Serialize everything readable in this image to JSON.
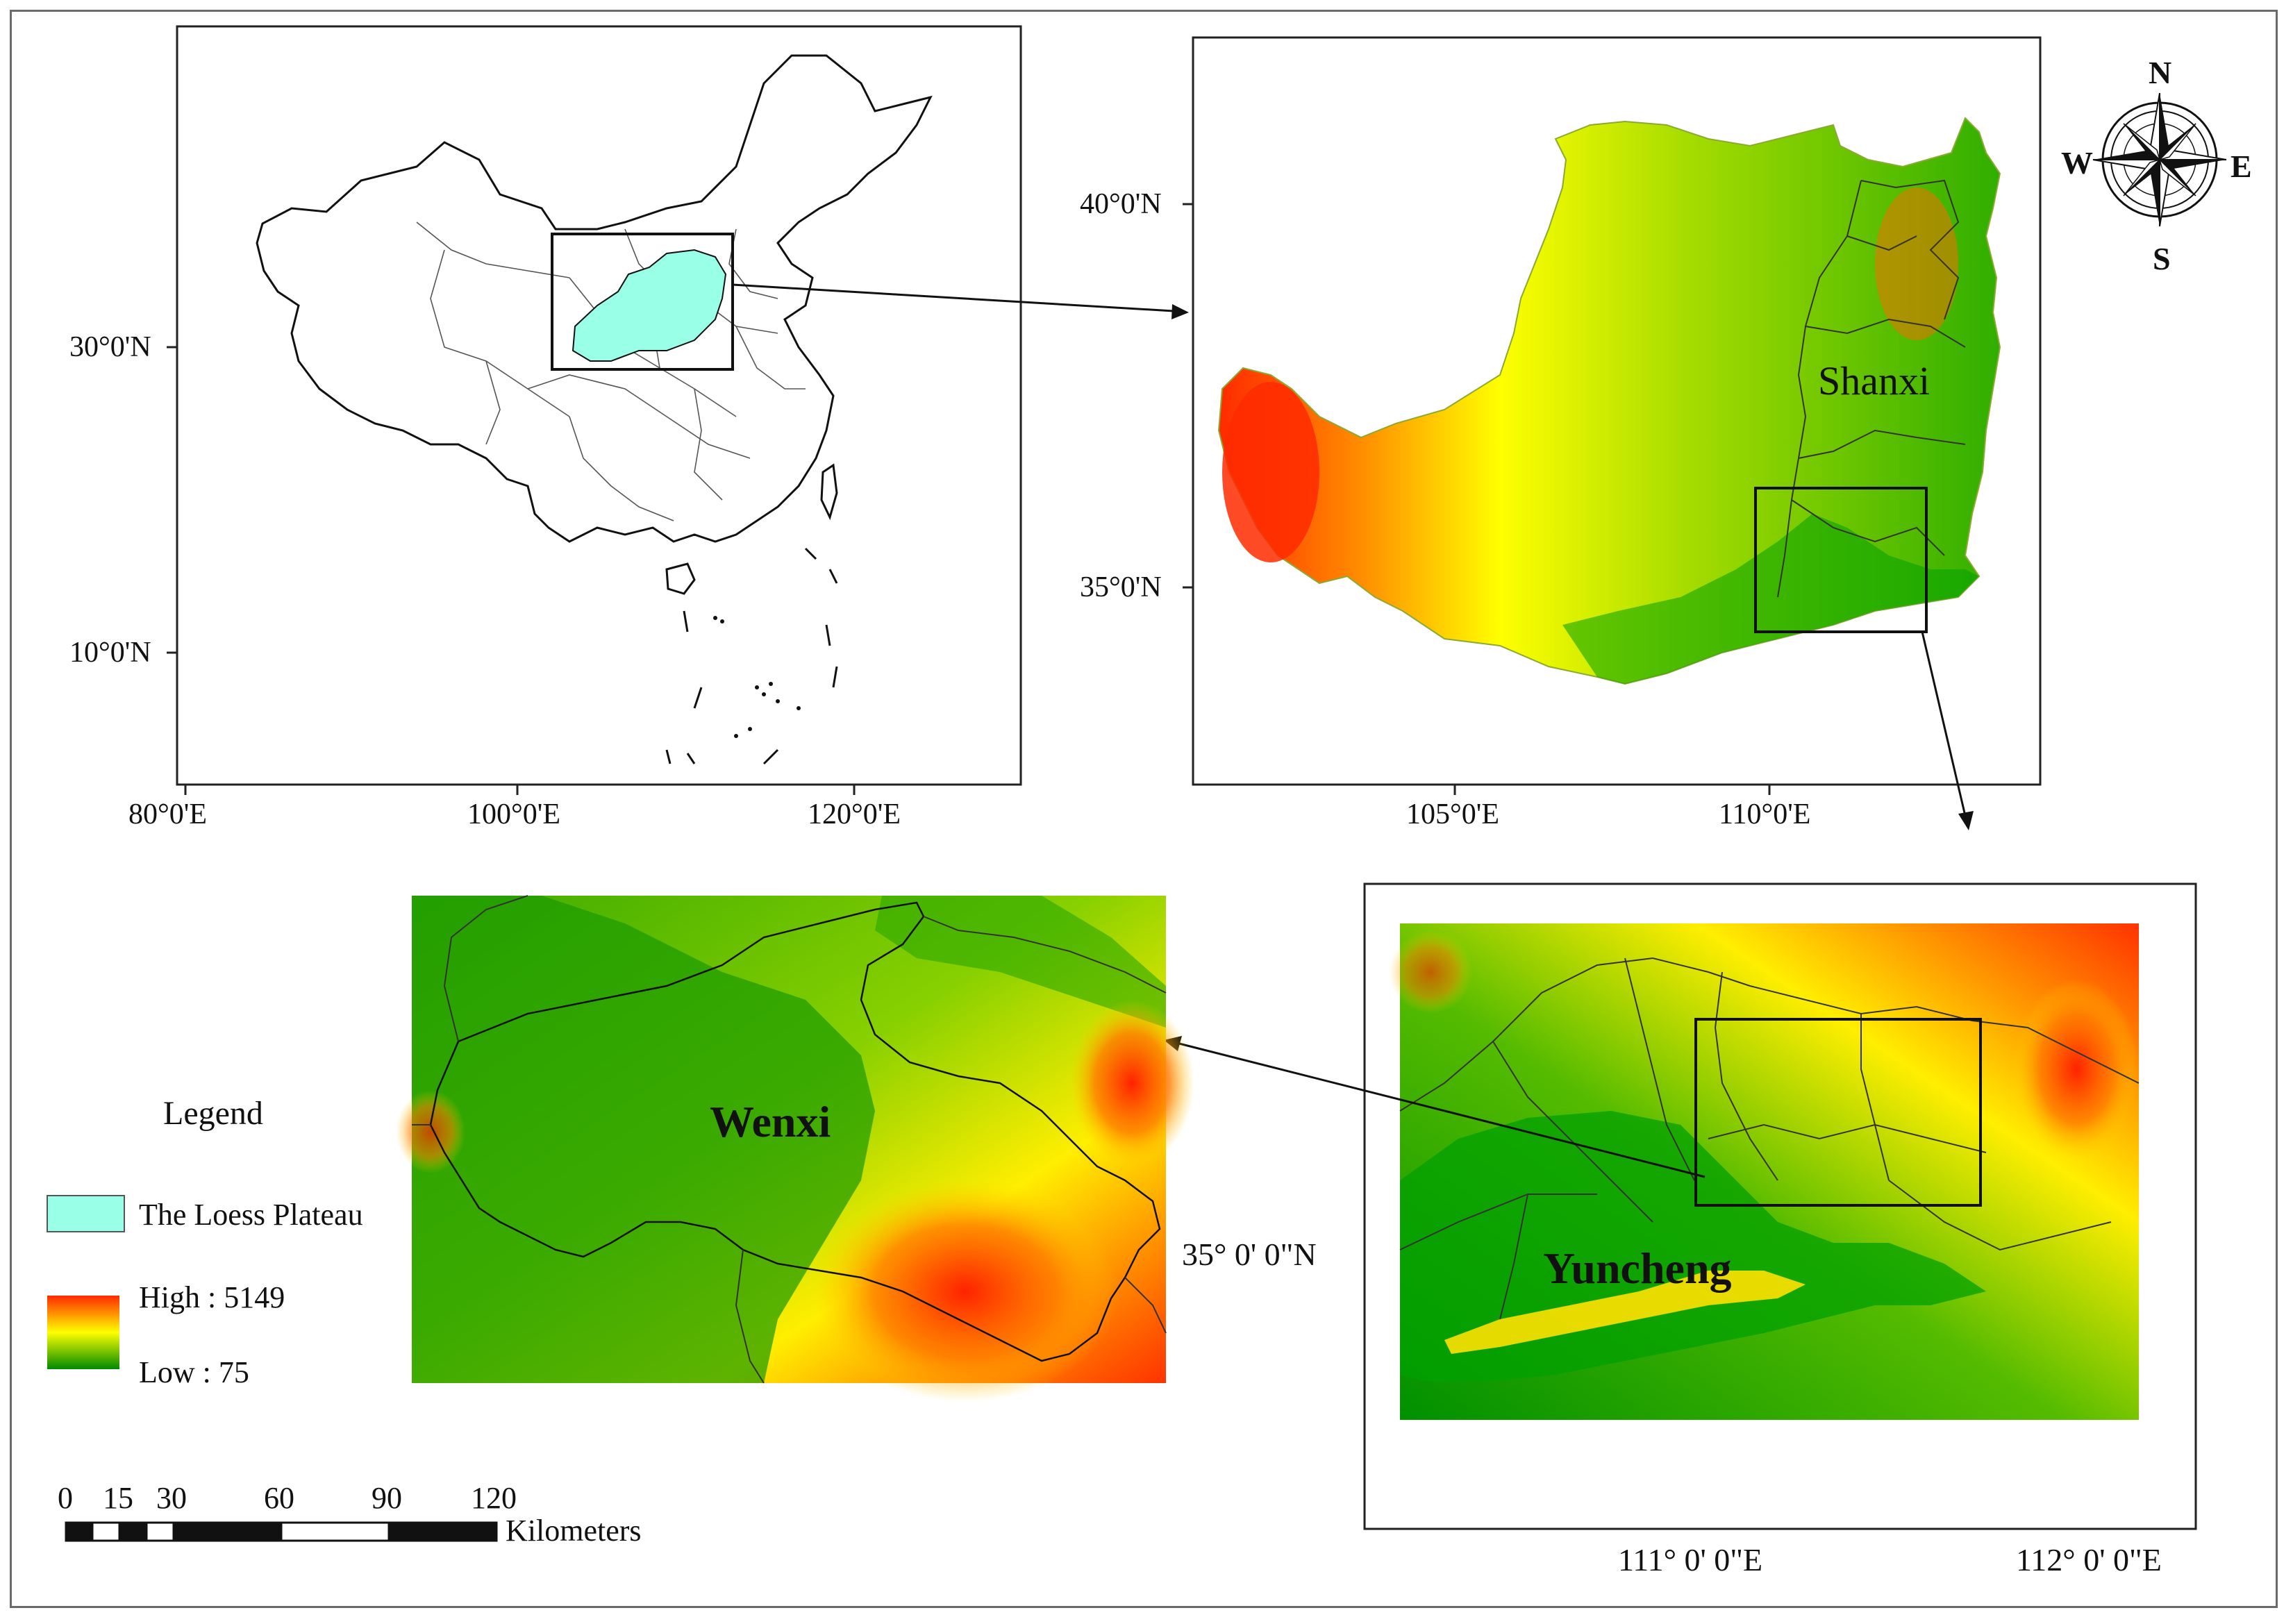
{
  "panels": {
    "china": {
      "lat_labels": [
        "30°0'N",
        "10°0'N"
      ],
      "lon_labels": [
        "80°0'E",
        "100°0'E",
        "120°0'E"
      ]
    },
    "plateau": {
      "lat_labels": [
        "40°0'N",
        "35°0'N"
      ],
      "lon_labels": [
        "105°0'E",
        "110°0'E"
      ],
      "region_label": "Shanxi"
    },
    "yuncheng": {
      "region_label": "Yuncheng",
      "lon_labels": [
        "111° 0' 0\"E",
        "112° 0' 0\"E"
      ]
    },
    "wenxi": {
      "region_label": "Wenxi",
      "lat_label": "35° 0' 0\"N"
    }
  },
  "compass": {
    "n": "N",
    "s": "S",
    "e": "E",
    "w": "W"
  },
  "legend": {
    "title": "Legend",
    "loess_label": "The Loess Plateau",
    "high_label": "High : 5149",
    "low_label": "Low : 75",
    "colors": {
      "loess": "#99ffe6",
      "high": "#ff2a00",
      "mid": "#ffff00",
      "low": "#008a00"
    }
  },
  "scale_bar": {
    "ticks": [
      "0",
      "15",
      "30",
      "60",
      "90",
      "120"
    ],
    "unit": "Kilometers"
  }
}
